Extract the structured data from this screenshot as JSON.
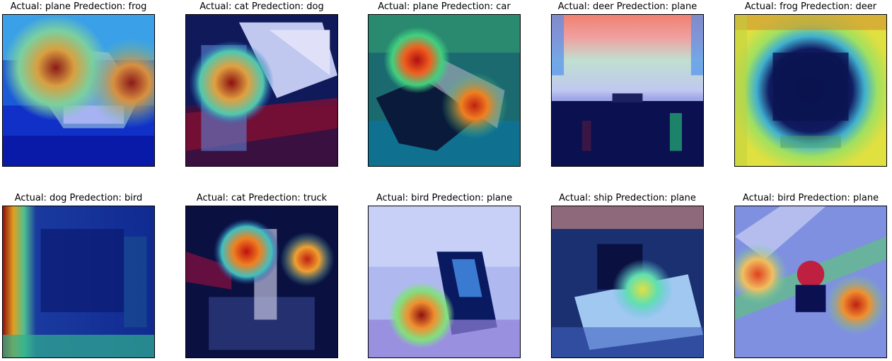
{
  "figure": {
    "panels": [
      {
        "title": "Actual: plane Predection: frog"
      },
      {
        "title": "Actual: cat Predection: dog"
      },
      {
        "title": "Actual: plane Predection: car"
      },
      {
        "title": "Actual: deer Predection: plane"
      },
      {
        "title": "Actual: frog Predection: deer"
      },
      {
        "title": "Actual: dog Predection: bird"
      },
      {
        "title": "Actual: cat Predection: truck"
      },
      {
        "title": "Actual: bird Predection: plane"
      },
      {
        "title": "Actual: ship Predection: plane"
      },
      {
        "title": "Actual: bird Predection: plane"
      }
    ]
  }
}
